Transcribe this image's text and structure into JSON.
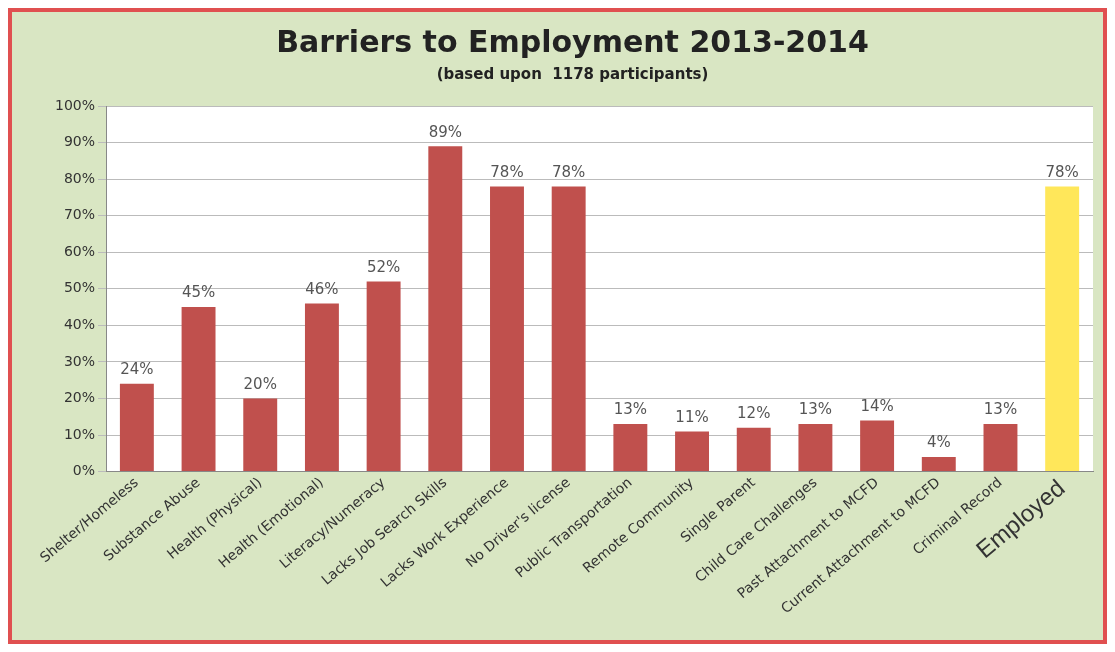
{
  "chart_data": {
    "type": "bar",
    "title": "Barriers to Employment 2013-2014",
    "subtitle": "(based upon  1178 participants)",
    "categories": [
      "Shelter/Homeless",
      "Substance Abuse",
      "Health (Physical)",
      "Health (Emotional)",
      "Literacy/Numeracy",
      "Lacks Job Search Skills",
      "Lacks Work Experience",
      "No Driver's license",
      "Public Transportation",
      "Remote Community",
      "Single Parent",
      "Child Care Challenges",
      "Past Attachment to MCFD",
      "Current Attachment to MCFD",
      "Criminal Record",
      "Employed"
    ],
    "values": [
      24,
      45,
      20,
      46,
      52,
      89,
      78,
      78,
      13,
      11,
      12,
      13,
      14,
      4,
      13,
      78
    ],
    "colors": [
      "#c0504d",
      "#c0504d",
      "#c0504d",
      "#c0504d",
      "#c0504d",
      "#c0504d",
      "#c0504d",
      "#c0504d",
      "#c0504d",
      "#c0504d",
      "#c0504d",
      "#c0504d",
      "#c0504d",
      "#c0504d",
      "#c0504d",
      "#ffe75a"
    ],
    "value_labels": [
      "24%",
      "45%",
      "20%",
      "46%",
      "52%",
      "89%",
      "78%",
      "78%",
      "13%",
      "11%",
      "12%",
      "13%",
      "14%",
      "4%",
      "13%",
      "78%"
    ],
    "ylim": [
      0,
      100
    ],
    "yticks": [
      {
        "value": 0,
        "label": "0%"
      },
      {
        "value": 10,
        "label": "10%"
      },
      {
        "value": 20,
        "label": "20%"
      },
      {
        "value": 30,
        "label": "30%"
      },
      {
        "value": 40,
        "label": "40%"
      },
      {
        "value": 50,
        "label": "50%"
      },
      {
        "value": 60,
        "label": "60%"
      },
      {
        "value": 70,
        "label": "70%"
      },
      {
        "value": 80,
        "label": "80%"
      },
      {
        "value": 90,
        "label": "90%"
      },
      {
        "value": 100,
        "label": "100%"
      }
    ],
    "grid": "y",
    "legend": false
  }
}
